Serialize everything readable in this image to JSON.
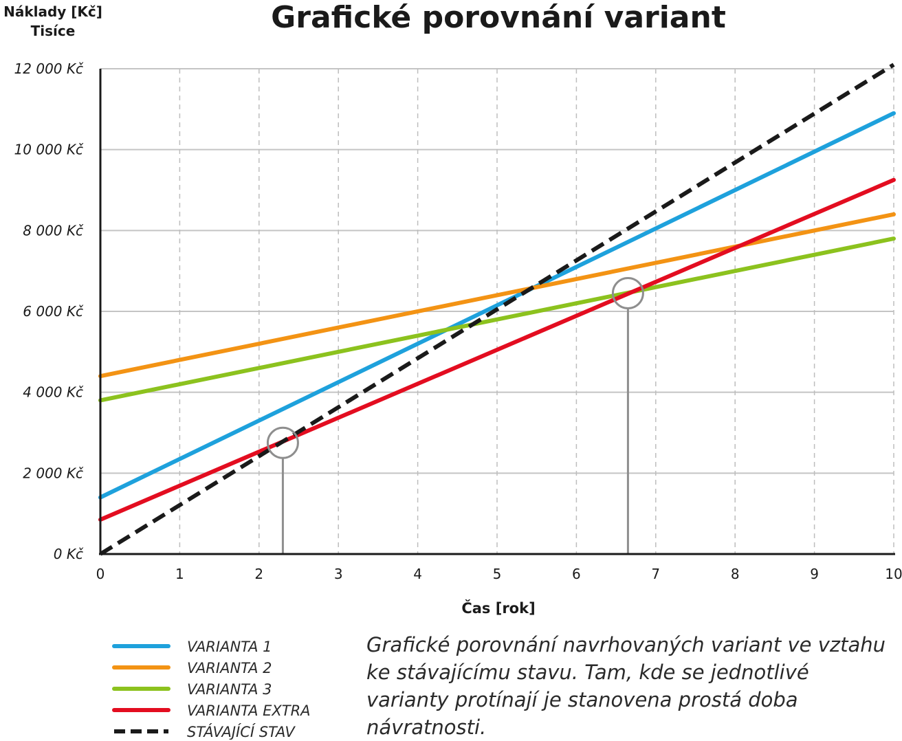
{
  "chart_data": {
    "type": "line",
    "title": "Grafické porovnání variant",
    "ylabel_lines": [
      "Náklady [Kč]",
      "Tisíce"
    ],
    "xlabel": "Čas [rok]",
    "xlim": [
      0,
      10
    ],
    "ylim": [
      0,
      12000
    ],
    "x_ticks": [
      "0",
      "1",
      "2",
      "3",
      "4",
      "5",
      "6",
      "7",
      "8",
      "9",
      "10"
    ],
    "y_ticks": [
      {
        "value": 0,
        "label": "0 Kč"
      },
      {
        "value": 2000,
        "label": "2 000 Kč"
      },
      {
        "value": 4000,
        "label": "4 000 Kč"
      },
      {
        "value": 6000,
        "label": "6 000 Kč"
      },
      {
        "value": 8000,
        "label": "8 000 Kč"
      },
      {
        "value": 10000,
        "label": "10 000 Kč"
      },
      {
        "value": 12000,
        "label": "12 000 Kč"
      }
    ],
    "grid": true,
    "series": [
      {
        "name": "VARIANTA 1",
        "color": "#1ea1dc",
        "dashed": false,
        "x": [
          0,
          10
        ],
        "y": [
          1400,
          10900
        ]
      },
      {
        "name": "VARIANTA 2",
        "color": "#f39314",
        "dashed": false,
        "x": [
          0,
          10
        ],
        "y": [
          4400,
          8400
        ]
      },
      {
        "name": "VARIANTA 3",
        "color": "#8cc21e",
        "dashed": false,
        "x": [
          0,
          10
        ],
        "y": [
          3800,
          7800
        ]
      },
      {
        "name": "VARIANTA EXTRA",
        "color": "#e30d20",
        "dashed": false,
        "x": [
          0,
          10
        ],
        "y": [
          850,
          9250
        ]
      },
      {
        "name": "STÁVAJÍCÍ STAV",
        "color": "#1a1a1a",
        "dashed": true,
        "x": [
          0,
          10
        ],
        "y": [
          0,
          12100
        ]
      }
    ],
    "annotations": [
      {
        "type": "intersection-marker",
        "x": 2.3,
        "y": 2750
      },
      {
        "type": "intersection-marker",
        "x": 6.65,
        "y": 6450
      }
    ],
    "legend_placement": "bottom-left"
  },
  "note": "Grafické porovnání navrhovaných variant ve vztahu ke stávajícímu stavu. Tam, kde se jednotlivé varianty protínají je stanovena prostá doba návratnosti."
}
